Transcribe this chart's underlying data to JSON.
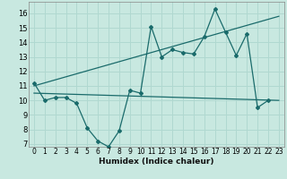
{
  "title": "",
  "xlabel": "Humidex (Indice chaleur)",
  "ylabel": "",
  "background_color": "#c8e8e0",
  "grid_color": "#b0d8d0",
  "line_color": "#1a6b6b",
  "xlim": [
    -0.5,
    23.5
  ],
  "ylim": [
    6.8,
    16.8
  ],
  "yticks": [
    7,
    8,
    9,
    10,
    11,
    12,
    13,
    14,
    15,
    16
  ],
  "xticks": [
    0,
    1,
    2,
    3,
    4,
    5,
    6,
    7,
    8,
    9,
    10,
    11,
    12,
    13,
    14,
    15,
    16,
    17,
    18,
    19,
    20,
    21,
    22,
    23
  ],
  "line1_x": [
    0,
    1,
    2,
    3,
    4,
    5,
    6,
    7,
    8,
    9,
    10,
    11,
    12,
    13,
    14,
    15,
    16,
    17,
    18,
    19,
    20,
    21,
    22
  ],
  "line1_y": [
    11.2,
    10.0,
    10.2,
    10.2,
    9.8,
    8.1,
    7.2,
    6.8,
    7.9,
    10.7,
    10.5,
    15.1,
    13.0,
    13.5,
    13.3,
    13.2,
    14.4,
    16.3,
    14.7,
    13.1,
    14.6,
    9.5,
    10.0
  ],
  "line2_x": [
    0,
    23
  ],
  "line2_y": [
    10.5,
    10.0
  ],
  "line3_x": [
    0,
    23
  ],
  "line3_y": [
    11.0,
    15.8
  ]
}
